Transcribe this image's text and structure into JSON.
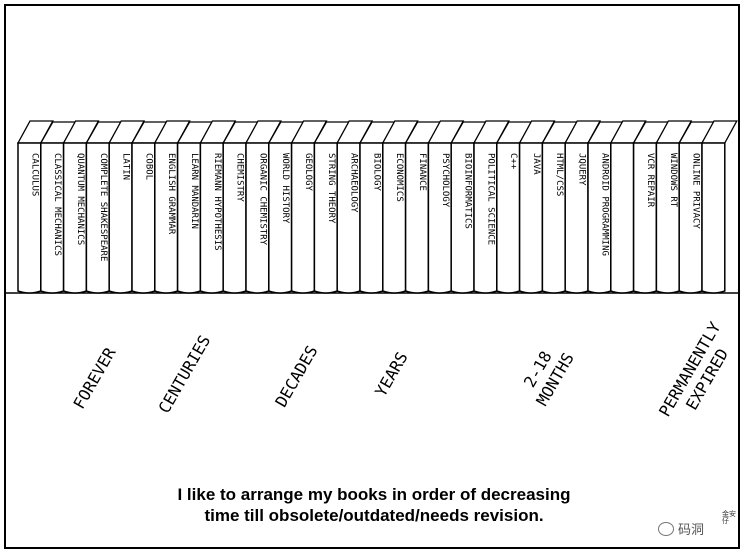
{
  "books": [
    "CALCULUS",
    "CLASSICAL MECHANICS",
    "QUANTUM MECHANICS",
    "COMPLETE SHAKESPEARE",
    "LATIN",
    "COBOL",
    "ENGLISH GRAMMAR",
    "LEARN MANDARIN",
    "RIEMANN HYPOTHESIS",
    "CHEMISTRY",
    "ORGANIC CHEMISTRY",
    "WORLD HISTORY",
    "GEOLOGY",
    "STRING THEORY",
    "ARCHAEOLOGY",
    "BIOLOGY",
    "ECONOMICS",
    "FINANCE",
    "PSYCHOLOGY",
    "BIOINFORMATICS",
    "POLITICAL SCIENCE",
    "C++",
    "JAVA",
    "HTML/CSS",
    "JQUERY",
    "ANDROID PROGRAMMING",
    "",
    "VCR REPAIR",
    "WINDOWS RT",
    "ONLINE PRIVACY",
    ""
  ],
  "categories": [
    {
      "lines": [
        "FOREVER"
      ]
    },
    {
      "lines": [
        "CENTURIES"
      ]
    },
    {
      "lines": [
        "DECADES"
      ]
    },
    {
      "lines": [
        "YEARS"
      ]
    },
    {
      "lines": [
        "2-18",
        "MONTHS"
      ]
    },
    {
      "lines": [
        "PERMANENTLY",
        "EXPIRED"
      ]
    }
  ],
  "caption": {
    "line1": "I like to arrange my books in order of decreasing",
    "line2": "time till obsolete/outdated/needs revision."
  },
  "watermark": {
    "text": "码洞",
    "icon": "wechat-icon"
  },
  "signature": "金安仔",
  "colors": {
    "ink": "#000000",
    "paper": "#ffffff"
  }
}
